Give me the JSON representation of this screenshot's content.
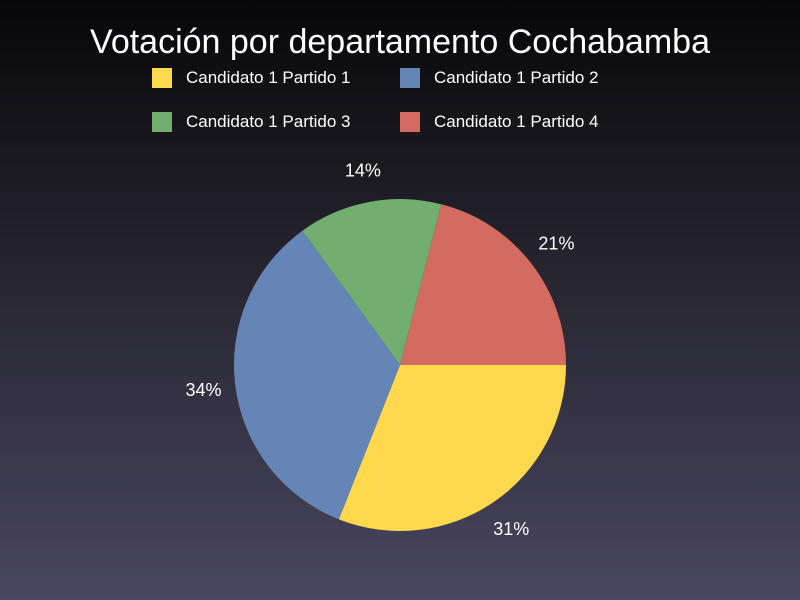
{
  "chart_data": {
    "type": "pie",
    "title": "Votación por departamento Cochabamba",
    "legend_position": "top",
    "slices": [
      {
        "name": "Candidato 1 Partido 1",
        "value": 31,
        "label": "31%",
        "color": "#fed84d"
      },
      {
        "name": "Candidato 1 Partido 2",
        "value": 34,
        "label": "34%",
        "color": "#6685b7"
      },
      {
        "name": "Candidato 1 Partido 3",
        "value": 14,
        "label": "14%",
        "color": "#72ae6f"
      },
      {
        "name": "Candidato 1 Partido 4",
        "value": 21,
        "label": "21%",
        "color": "#d36b61"
      }
    ]
  }
}
